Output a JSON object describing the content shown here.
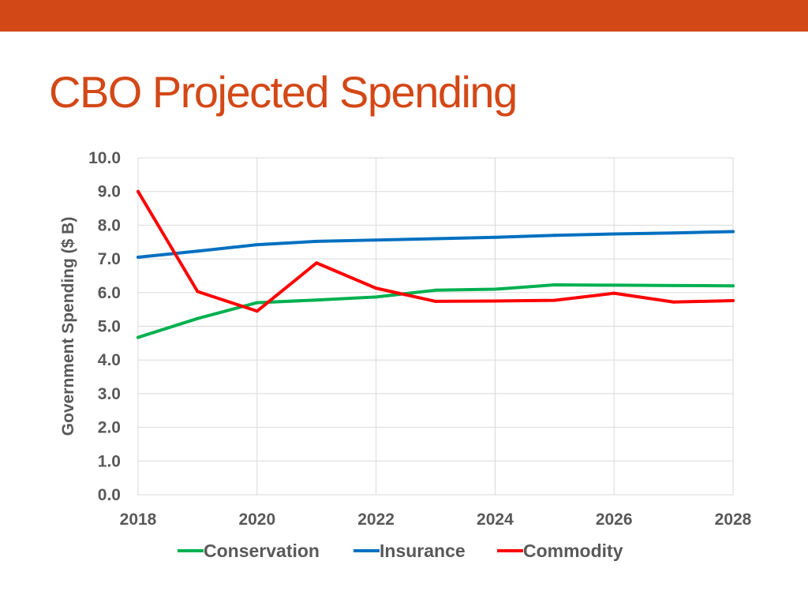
{
  "slide": {
    "title": "CBO Projected Spending",
    "accent_color": "#d34817"
  },
  "chart_data": {
    "type": "line",
    "title": "",
    "xlabel": "",
    "ylabel": "Government Spending ($ B)",
    "x": [
      2018,
      2019,
      2020,
      2021,
      2022,
      2023,
      2024,
      2025,
      2026,
      2027,
      2028
    ],
    "x_ticks": [
      "2018",
      "2020",
      "2022",
      "2024",
      "2026",
      "2028"
    ],
    "xlim": [
      2018,
      2028
    ],
    "ylim": [
      0,
      10
    ],
    "y_ticks": [
      "0.0",
      "1.0",
      "2.0",
      "3.0",
      "4.0",
      "5.0",
      "6.0",
      "7.0",
      "8.0",
      "9.0",
      "10.0"
    ],
    "grid": true,
    "legend_position": "bottom",
    "series": [
      {
        "name": "Conservation",
        "color": "#00b050",
        "values": [
          4.67,
          5.23,
          5.7,
          5.78,
          5.87,
          6.07,
          6.1,
          6.23,
          6.22,
          6.21,
          6.2
        ]
      },
      {
        "name": "Insurance",
        "color": "#0070c0",
        "values": [
          7.05,
          7.23,
          7.42,
          7.52,
          7.56,
          7.6,
          7.64,
          7.7,
          7.74,
          7.77,
          7.81
        ]
      },
      {
        "name": "Commodity",
        "color": "#ff0000",
        "values": [
          9.0,
          6.03,
          5.45,
          6.88,
          6.13,
          5.74,
          5.75,
          5.77,
          5.98,
          5.72,
          5.76
        ]
      }
    ]
  }
}
